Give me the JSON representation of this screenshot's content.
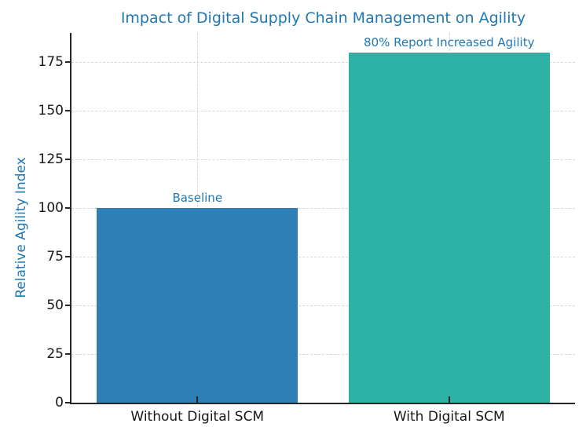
{
  "chart_data": {
    "type": "bar",
    "title": "Impact of Digital Supply Chain Management on Agility",
    "ylabel": "Relative Agility Index",
    "xlabel": "",
    "categories": [
      "Without Digital SCM",
      "With Digital SCM"
    ],
    "values": [
      100,
      180
    ],
    "bar_annotations": [
      "Baseline",
      "80% Report Increased Agility"
    ],
    "bar_colors": [
      "#2e7eb8",
      "#2fb2a6"
    ],
    "yticks": [
      0,
      25,
      50,
      75,
      100,
      125,
      150,
      175
    ],
    "ylim": [
      0,
      190
    ],
    "bar_rel_width": 0.8,
    "grid": {
      "horizontal": true,
      "vertical": true,
      "style": "dashed",
      "color": "#d8d8d8",
      "legend_position": "none"
    },
    "colors": {
      "title_text": "#1f77b4",
      "ylabel_text": "#1f77b4",
      "annotation_text": "#1f77b4",
      "tick_text": "#171717",
      "axis": "#262626"
    }
  }
}
